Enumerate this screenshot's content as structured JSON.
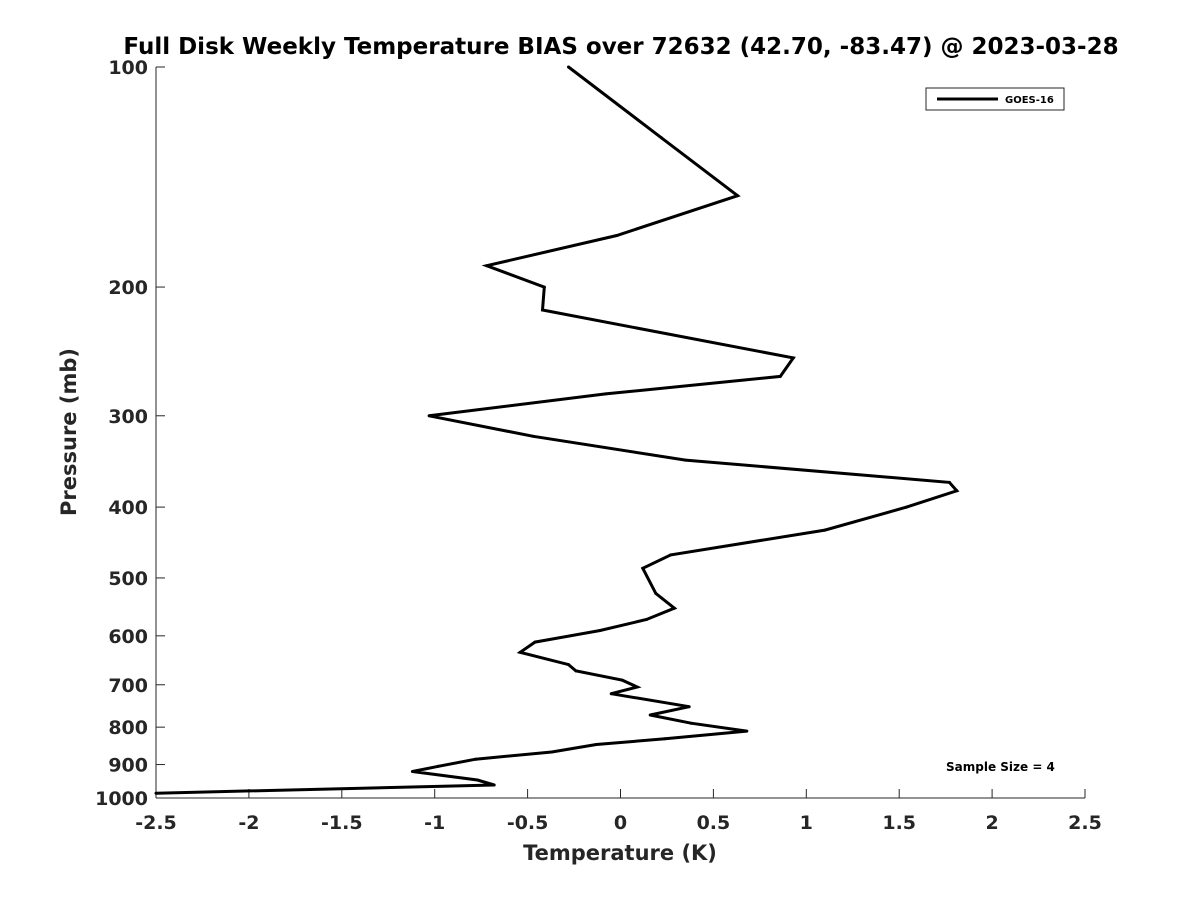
{
  "chart_data": {
    "type": "line",
    "title": "Full Disk Weekly Temperature BIAS over 72632 (42.70, -83.47) @ 2023-03-28",
    "xlabel": "Temperature (K)",
    "ylabel": "Pressure (mb)",
    "xlim": [
      -2.5,
      2.5
    ],
    "ylim": [
      100,
      1000
    ],
    "y_scale": "log",
    "y_reversed": true,
    "xticks": [
      -2.5,
      -2,
      -1.5,
      -1,
      -0.5,
      0,
      0.5,
      1,
      1.5,
      2,
      2.5
    ],
    "xtick_labels": [
      "-2.5",
      "-2",
      "-1.5",
      "-1",
      "-0.5",
      "0",
      "0.5",
      "1",
      "1.5",
      "2",
      "2.5"
    ],
    "yticks": [
      100,
      200,
      300,
      400,
      500,
      600,
      700,
      800,
      900,
      1000
    ],
    "ytick_labels": [
      "100",
      "200",
      "300",
      "400",
      "500",
      "600",
      "700",
      "800",
      "900",
      "1000"
    ],
    "grid": false,
    "legend_position": "top-right",
    "series": [
      {
        "name": "GOES-16",
        "color": "#000000",
        "points": [
          {
            "x": -0.28,
            "p": 100
          },
          {
            "x": 0.22,
            "p": 125
          },
          {
            "x": 0.63,
            "p": 150
          },
          {
            "x": -0.02,
            "p": 170
          },
          {
            "x": -0.72,
            "p": 187
          },
          {
            "x": -0.41,
            "p": 200
          },
          {
            "x": -0.42,
            "p": 215
          },
          {
            "x": 0.93,
            "p": 250
          },
          {
            "x": 0.86,
            "p": 265
          },
          {
            "x": -0.08,
            "p": 280
          },
          {
            "x": -1.03,
            "p": 300
          },
          {
            "x": -0.47,
            "p": 320
          },
          {
            "x": 0.35,
            "p": 345
          },
          {
            "x": 1.77,
            "p": 370
          },
          {
            "x": 1.81,
            "p": 380
          },
          {
            "x": 1.54,
            "p": 400
          },
          {
            "x": 1.1,
            "p": 430
          },
          {
            "x": 0.27,
            "p": 465
          },
          {
            "x": 0.12,
            "p": 485
          },
          {
            "x": 0.19,
            "p": 525
          },
          {
            "x": 0.29,
            "p": 550
          },
          {
            "x": 0.14,
            "p": 570
          },
          {
            "x": -0.11,
            "p": 590
          },
          {
            "x": -0.46,
            "p": 612
          },
          {
            "x": -0.54,
            "p": 632
          },
          {
            "x": -0.28,
            "p": 657
          },
          {
            "x": -0.24,
            "p": 670
          },
          {
            "x": 0.01,
            "p": 690
          },
          {
            "x": 0.09,
            "p": 705
          },
          {
            "x": -0.05,
            "p": 720
          },
          {
            "x": 0.37,
            "p": 750
          },
          {
            "x": 0.16,
            "p": 770
          },
          {
            "x": 0.38,
            "p": 790
          },
          {
            "x": 0.68,
            "p": 810
          },
          {
            "x": 0.24,
            "p": 830
          },
          {
            "x": -0.13,
            "p": 845
          },
          {
            "x": -0.37,
            "p": 865
          },
          {
            "x": -0.78,
            "p": 885
          },
          {
            "x": -0.98,
            "p": 905
          },
          {
            "x": -1.12,
            "p": 920
          },
          {
            "x": -0.77,
            "p": 945
          },
          {
            "x": -0.68,
            "p": 960
          },
          {
            "x": -2.5,
            "p": 985
          }
        ]
      }
    ],
    "annotations": [
      {
        "text": "Sample Size = 4",
        "position": "bottom-right"
      }
    ]
  }
}
